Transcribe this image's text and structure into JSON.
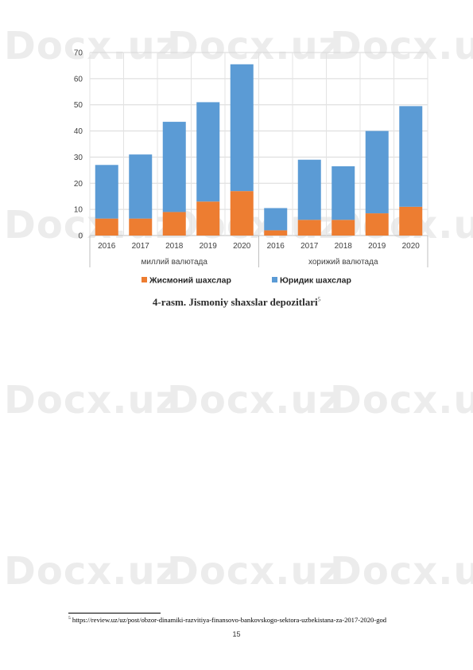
{
  "watermark": {
    "text": "Docx.uz"
  },
  "chart_data": {
    "type": "bar",
    "stacked": true,
    "ylim": [
      0,
      70
    ],
    "yticks": [
      0,
      10,
      20,
      30,
      40,
      50,
      60,
      70
    ],
    "grid": true,
    "legend": "bottom",
    "groups": [
      {
        "label": "миллий валютада",
        "categories": [
          "2016",
          "2017",
          "2018",
          "2019",
          "2020"
        ]
      },
      {
        "label": "хорижий валютада",
        "categories": [
          "2016",
          "2017",
          "2018",
          "2019",
          "2020"
        ]
      }
    ],
    "series": [
      {
        "name": "Жисмоний шахслар",
        "color": "#ed7d31",
        "values": [
          6.5,
          6.5,
          9,
          13,
          17,
          2,
          6,
          6,
          8.5,
          11
        ]
      },
      {
        "name": "Юридик шахслар",
        "color": "#5b9bd5",
        "values": [
          20.5,
          24.5,
          34.5,
          38,
          48.5,
          8.5,
          23,
          20.5,
          31.5,
          38.5
        ]
      }
    ]
  },
  "caption": {
    "text": "4-rasm. Jismoniy shaxslar depozitlari",
    "ref": "5"
  },
  "footnote": {
    "ref": "5",
    "text": " https://review.uz/uz/post/obzor-dinamiki-razvitiya-finansovo-bankovskogo-sektora-uzbekistana-za-2017-2020-god"
  },
  "page_number": "15"
}
